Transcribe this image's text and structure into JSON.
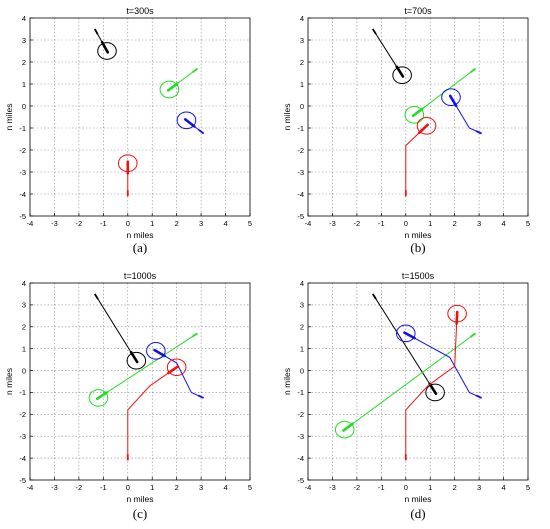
{
  "colors": {
    "black": "#000000",
    "green": "#22dd22",
    "blue": "#1010ee",
    "red": "#ee1111",
    "grid": "#8a8a8a"
  },
  "chart_data": [
    {
      "type": "line",
      "title": "t=300s",
      "caption": "(a)",
      "xlabel": "n miles",
      "ylabel": "n miles",
      "xlim": [
        -4,
        5
      ],
      "ylim": [
        -5,
        4
      ],
      "xticks": [
        "-4",
        "-3",
        "-2",
        "-1",
        "0",
        "1",
        "2",
        "3",
        "4",
        "5"
      ],
      "yticks": [
        "-5",
        "-4",
        "-3",
        "-2",
        "-1",
        "0",
        "1",
        "2",
        "3",
        "4"
      ],
      "grid": true,
      "series": [
        {
          "color": "black",
          "path": [
            [
              -1.35,
              3.5
            ],
            [
              -0.85,
              2.5
            ]
          ],
          "circle": [
            -0.85,
            2.5
          ],
          "radius": 0.38
        },
        {
          "color": "green",
          "path": [
            [
              2.85,
              1.7
            ],
            [
              1.7,
              0.75
            ]
          ],
          "circle": [
            1.7,
            0.75
          ],
          "radius": 0.38
        },
        {
          "color": "blue",
          "path": [
            [
              3.1,
              -1.25
            ],
            [
              2.4,
              -0.65
            ]
          ],
          "circle": [
            2.4,
            -0.65
          ],
          "radius": 0.38
        },
        {
          "color": "red",
          "path": [
            [
              0,
              -4.1
            ],
            [
              0,
              -2.6
            ]
          ],
          "circle": [
            0,
            -2.6
          ],
          "radius": 0.38
        }
      ]
    },
    {
      "type": "line",
      "title": "t=700s",
      "caption": "(b)",
      "xlabel": "n miles",
      "ylabel": "n miles",
      "xlim": [
        -4,
        5
      ],
      "ylim": [
        -5,
        4
      ],
      "xticks": [
        "-4",
        "-3",
        "-2",
        "-1",
        "0",
        "1",
        "2",
        "3",
        "4",
        "5"
      ],
      "yticks": [
        "-5",
        "-4",
        "-3",
        "-2",
        "-1",
        "0",
        "1",
        "2",
        "3",
        "4"
      ],
      "grid": true,
      "series": [
        {
          "color": "black",
          "path": [
            [
              -1.35,
              3.5
            ],
            [
              -0.15,
              1.4
            ]
          ],
          "circle": [
            -0.15,
            1.4
          ],
          "radius": 0.38
        },
        {
          "color": "green",
          "path": [
            [
              2.85,
              1.7
            ],
            [
              0.35,
              -0.4
            ]
          ],
          "circle": [
            0.35,
            -0.4
          ],
          "radius": 0.38
        },
        {
          "color": "blue",
          "path": [
            [
              3.1,
              -1.25
            ],
            [
              2.6,
              -1.0
            ],
            [
              1.85,
              0.4
            ]
          ],
          "circle": [
            1.85,
            0.4
          ],
          "radius": 0.38
        },
        {
          "color": "red",
          "path": [
            [
              0,
              -4.1
            ],
            [
              0,
              -1.8
            ],
            [
              0.85,
              -0.9
            ]
          ],
          "circle": [
            0.85,
            -0.9
          ],
          "radius": 0.38
        }
      ]
    },
    {
      "type": "line",
      "title": "t=1000s",
      "caption": "(c)",
      "xlabel": "n miles",
      "ylabel": "n miles",
      "xlim": [
        -4,
        5
      ],
      "ylim": [
        -5,
        4
      ],
      "xticks": [
        "-4",
        "-3",
        "-2",
        "-1",
        "0",
        "1",
        "2",
        "3",
        "4",
        "5"
      ],
      "yticks": [
        "-5",
        "-4",
        "-3",
        "-2",
        "-1",
        "0",
        "1",
        "2",
        "3",
        "4"
      ],
      "grid": true,
      "series": [
        {
          "color": "black",
          "path": [
            [
              -1.35,
              3.5
            ],
            [
              0.35,
              0.45
            ]
          ],
          "circle": [
            0.35,
            0.45
          ],
          "radius": 0.38
        },
        {
          "color": "green",
          "path": [
            [
              2.85,
              1.7
            ],
            [
              -1.2,
              -1.25
            ]
          ],
          "circle": [
            -1.2,
            -1.25
          ],
          "radius": 0.38
        },
        {
          "color": "blue",
          "path": [
            [
              3.1,
              -1.25
            ],
            [
              2.6,
              -1.0
            ],
            [
              2.0,
              0.35
            ],
            [
              1.15,
              0.9
            ]
          ],
          "circle": [
            1.15,
            0.9
          ],
          "radius": 0.38
        },
        {
          "color": "red",
          "path": [
            [
              0,
              -4.1
            ],
            [
              0,
              -1.8
            ],
            [
              0.9,
              -0.7
            ],
            [
              2.0,
              0.15
            ]
          ],
          "circle": [
            2.0,
            0.15
          ],
          "radius": 0.38
        }
      ]
    },
    {
      "type": "line",
      "title": "t=1500s",
      "caption": "(d)",
      "xlabel": "n miles",
      "ylabel": "n miles",
      "xlim": [
        -4,
        5
      ],
      "ylim": [
        -5,
        4
      ],
      "xticks": [
        "-4",
        "-3",
        "-2",
        "-1",
        "0",
        "1",
        "2",
        "3",
        "4",
        "5"
      ],
      "yticks": [
        "-5",
        "-4",
        "-3",
        "-2",
        "-1",
        "0",
        "1",
        "2",
        "3",
        "4"
      ],
      "grid": true,
      "series": [
        {
          "color": "black",
          "path": [
            [
              -1.35,
              3.5
            ],
            [
              1.2,
              -1.0
            ]
          ],
          "circle": [
            1.2,
            -1.0
          ],
          "radius": 0.38
        },
        {
          "color": "green",
          "path": [
            [
              2.85,
              1.7
            ],
            [
              -2.5,
              -2.7
            ]
          ],
          "circle": [
            -2.5,
            -2.7
          ],
          "radius": 0.38
        },
        {
          "color": "blue",
          "path": [
            [
              3.1,
              -1.25
            ],
            [
              2.6,
              -1.0
            ],
            [
              1.8,
              0.6
            ],
            [
              0.0,
              1.7
            ]
          ],
          "circle": [
            0.0,
            1.7
          ],
          "radius": 0.38
        },
        {
          "color": "red",
          "path": [
            [
              0,
              -4.1
            ],
            [
              0,
              -1.8
            ],
            [
              0.9,
              -0.7
            ],
            [
              2.0,
              0.2
            ],
            [
              2.1,
              2.6
            ]
          ],
          "circle": [
            2.1,
            2.6
          ],
          "radius": 0.38
        }
      ]
    }
  ]
}
